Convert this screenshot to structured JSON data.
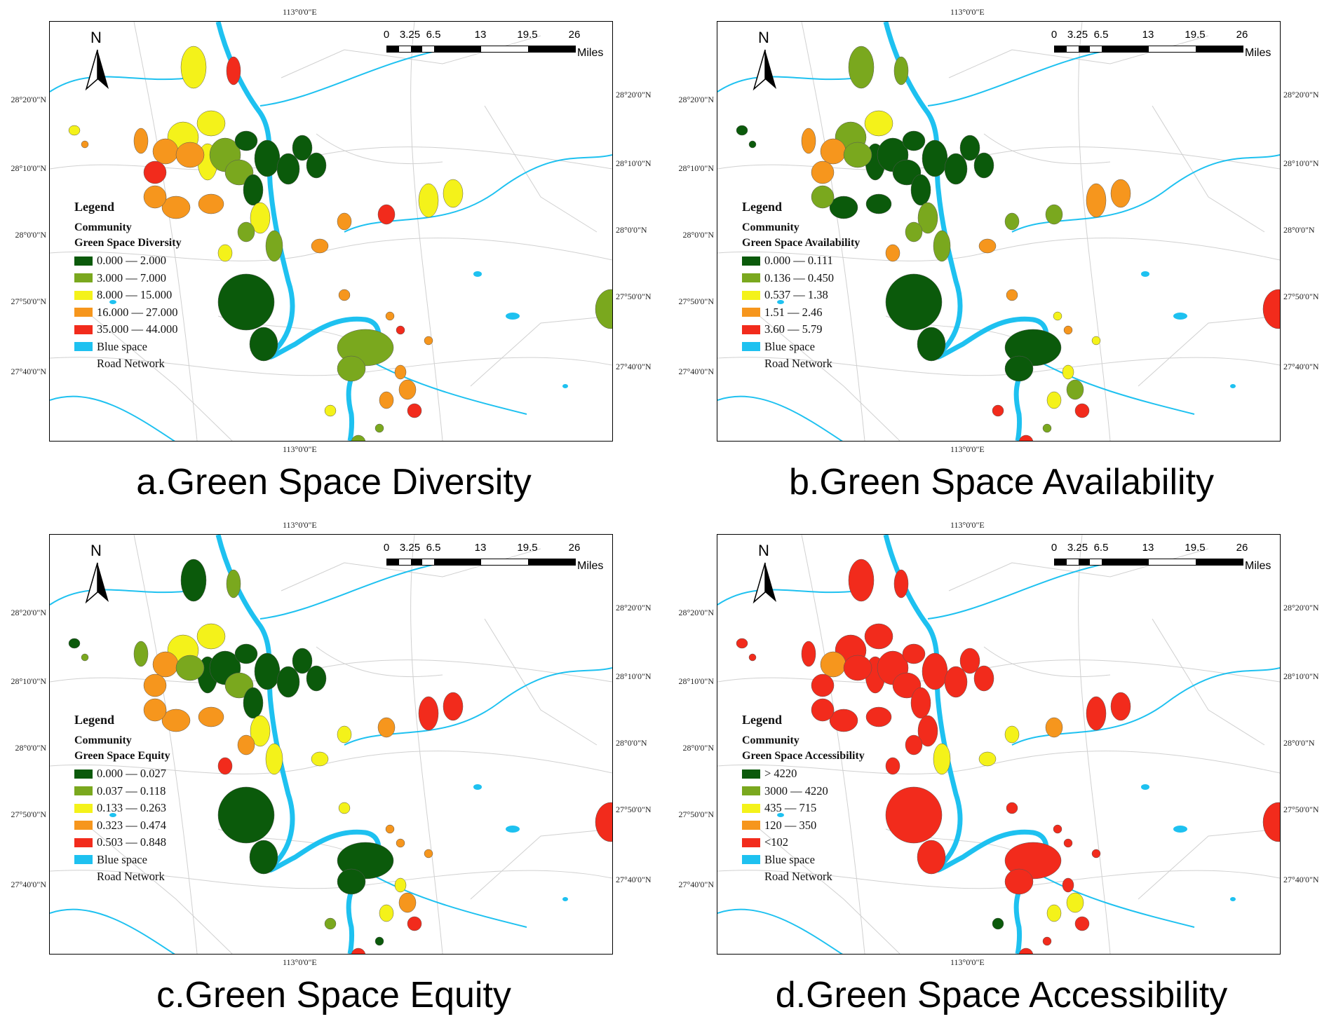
{
  "longitude_label": "113°0'0\"E",
  "lat_labels_left": [
    "28°20'0\"N",
    "28°10'0\"N",
    "28°0'0\"N",
    "27°50'0\"N",
    "27°40'0\"N"
  ],
  "lat_labels_right": [
    "28°20'0\"N",
    "28°10'0\"N",
    "28°0'0\"N",
    "27°50'0\"N",
    "27°40'0\"N"
  ],
  "north_arrow": {
    "letter": "N",
    "icon": "north-arrow-icon"
  },
  "scale_bar": {
    "labels": [
      "0",
      "3.25",
      "6.5",
      "13",
      "19.5",
      "26"
    ],
    "units": "Miles"
  },
  "legend_common": {
    "title": "Legend",
    "subtitle": "Community",
    "blue_space": "Blue space",
    "road_network": "Road Network"
  },
  "colors": {
    "blue": "#1ec1f0",
    "road": "#d0d0d0",
    "classes": [
      "#0b5a0b",
      "#7aa81e",
      "#f4f21a",
      "#f6961d",
      "#f22b1c"
    ]
  },
  "panels": [
    {
      "caption": "a.Green Space Diversity",
      "legend_title": "Green Space Diversity",
      "classes": [
        "0.000 — 2.000",
        "3.000 — 7.000",
        "8.000 — 15.000",
        "16.000 — 27.000",
        "35.000 — 44.000"
      ]
    },
    {
      "caption": "b.Green Space Availability",
      "legend_title": "Green Space Availability",
      "classes": [
        "0.000 — 0.111",
        "0.136 — 0.450",
        "0.537 — 1.38",
        "1.51 — 2.46",
        "3.60 — 5.79"
      ]
    },
    {
      "caption": "c.Green Space Equity",
      "legend_title": "Green Space Equity",
      "classes": [
        "0.000 — 0.027",
        "0.037 — 0.118",
        "0.133 — 0.263",
        "0.323 — 0.474",
        "0.503 — 0.848"
      ]
    },
    {
      "caption": "d.Green Space Accessibility",
      "legend_title": "Green Space Accessibility",
      "classes": [
        "> 4220",
        "3000 — 4220",
        "435 — 715",
        "120 — 350",
        "<102"
      ]
    }
  ]
}
